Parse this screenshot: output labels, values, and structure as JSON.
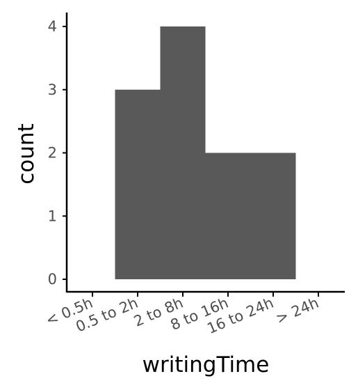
{
  "chart_data": {
    "type": "bar",
    "xlabel": "writingTime",
    "ylabel": "count",
    "categories": [
      "< 0.5h",
      "0.5 to 2h",
      "2 to 8h",
      "8 to 16h",
      "16 to 24h",
      "> 24h"
    ],
    "values": [
      0,
      3,
      4,
      2,
      2,
      0
    ],
    "ylim": [
      0,
      4
    ],
    "yticks": [
      0,
      1,
      2,
      3,
      4
    ],
    "grid": false,
    "bar_color": "#595959"
  }
}
